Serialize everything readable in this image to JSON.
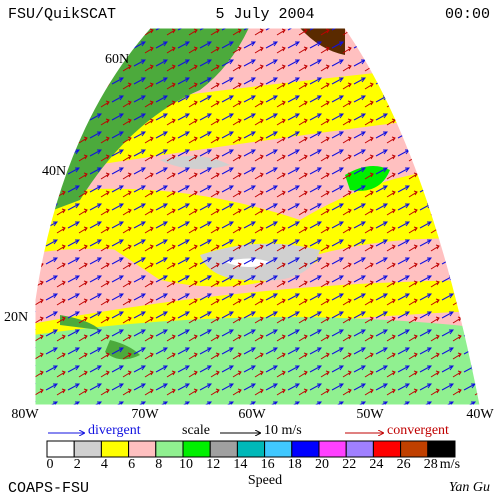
{
  "header": {
    "title": "FSU/QuikSCAT",
    "date": "5 July 2004",
    "time": "00:00"
  },
  "latitude_labels": [
    "60N",
    "40N",
    "20N"
  ],
  "longitude_labels": [
    "80W",
    "70W",
    "60W",
    "50W",
    "40W"
  ],
  "legend": {
    "divergent": "divergent",
    "scale": "scale",
    "scale_value": "10 m/s",
    "convergent": "convergent"
  },
  "colorbar": {
    "title": "Speed",
    "unit": "m/s",
    "ticks": [
      0,
      2,
      4,
      6,
      8,
      10,
      12,
      14,
      16,
      18,
      20,
      22,
      24,
      26,
      28
    ],
    "colors": [
      "#ffffff",
      "#d0d0d0",
      "#ffff00",
      "#ffc0c0",
      "#90f090",
      "#00f000",
      "#a0a0a0",
      "#00b8b8",
      "#40c8ff",
      "#0000ff",
      "#ff40ff",
      "#a080ff",
      "#ff0000",
      "#c04000",
      "#000000"
    ]
  },
  "footer": {
    "left": "COAPS-FSU",
    "right": "Yan Gu"
  }
}
